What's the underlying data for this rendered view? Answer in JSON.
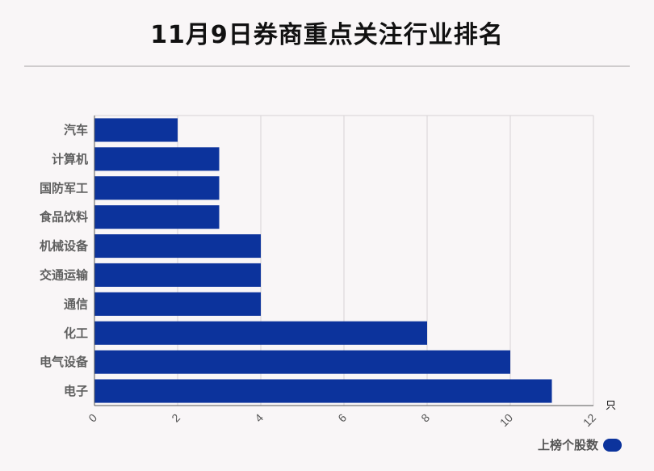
{
  "title": "11月9日券商重点关注行业排名",
  "chart_data": {
    "type": "bar",
    "orientation": "horizontal",
    "categories": [
      "汽车",
      "计算机",
      "国防军工",
      "食品饮料",
      "机械设备",
      "交通运输",
      "通信",
      "化工",
      "电气设备",
      "电子"
    ],
    "series": [
      {
        "name": "上榜个股数",
        "values": [
          2,
          3,
          3,
          3,
          4,
          4,
          4,
          8,
          10,
          11
        ]
      }
    ],
    "xlim": [
      0,
      12
    ],
    "x_ticks": [
      0,
      2,
      4,
      6,
      8,
      10,
      12
    ],
    "x_unit": "只",
    "grid": true,
    "legend_position": "bottom-right",
    "bar_color": "#0c339c"
  }
}
